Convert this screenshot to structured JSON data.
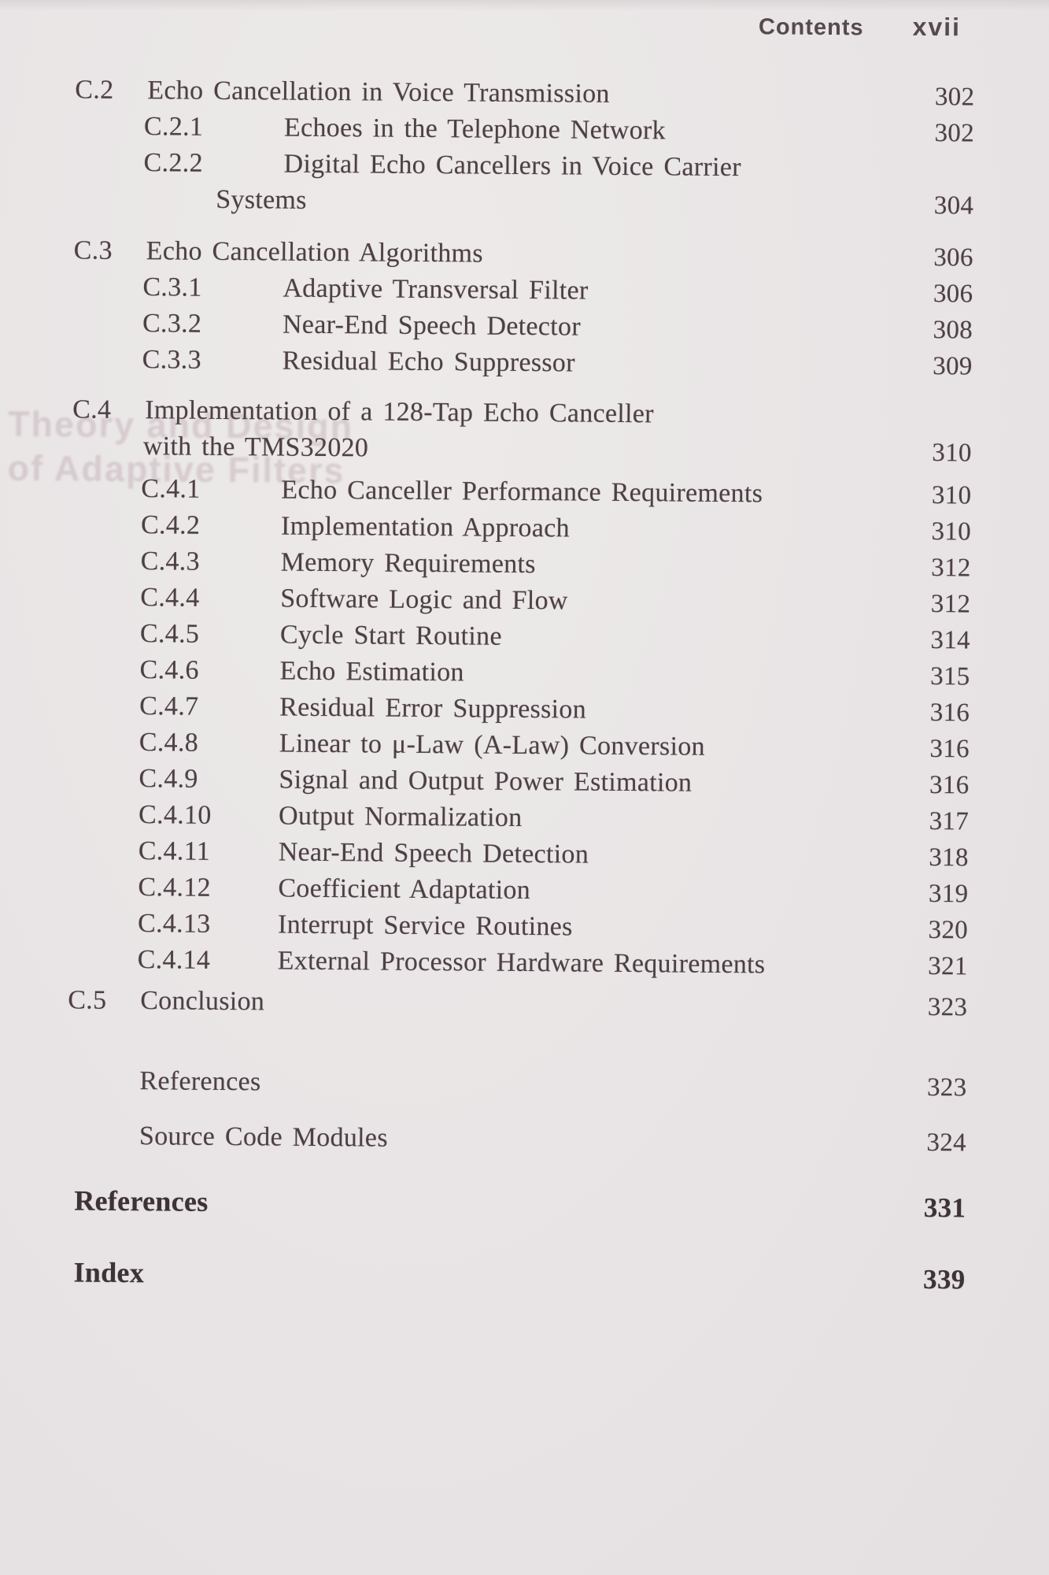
{
  "header": {
    "title": "Contents",
    "page_label": "xvii"
  },
  "ghost_text": {
    "line1": "Theory and Design",
    "line2": "of Adaptive Filters"
  },
  "colors": {
    "paper": "#e9e5e6",
    "ink": "#4d4045",
    "ink_bold": "#3d3237",
    "header_ink": "#564a4e",
    "ghost": "#a98c96"
  },
  "toc_entries": [
    {
      "id": "C.2",
      "level": 0,
      "title": "Echo Cancellation in Voice Transmission",
      "page": "302"
    },
    {
      "id": "C.2.1",
      "level": 1,
      "title": "Echoes in the Telephone Network",
      "page": "302"
    },
    {
      "id": "C.2.2",
      "level": 1,
      "title": "Digital Echo Cancellers in Voice Carrier",
      "continuation": "Systems",
      "page": "304"
    },
    {
      "id": "C.3",
      "level": 0,
      "title": "Echo Cancellation Algorithms",
      "page": "306"
    },
    {
      "id": "C.3.1",
      "level": 1,
      "title": "Adaptive Transversal Filter",
      "page": "306"
    },
    {
      "id": "C.3.2",
      "level": 1,
      "title": "Near-End Speech Detector",
      "page": "308"
    },
    {
      "id": "C.3.3",
      "level": 1,
      "title": "Residual Echo Suppressor",
      "page": "309"
    },
    {
      "id": "C.4",
      "level": 0,
      "title": "Implementation of a 128-Tap Echo Canceller",
      "continuation": "with the TMS32020",
      "page": "310"
    },
    {
      "id": "C.4.1",
      "level": 1,
      "title": "Echo Canceller Performance Requirements",
      "page": "310"
    },
    {
      "id": "C.4.2",
      "level": 1,
      "title": "Implementation Approach",
      "page": "310"
    },
    {
      "id": "C.4.3",
      "level": 1,
      "title": "Memory Requirements",
      "page": "312"
    },
    {
      "id": "C.4.4",
      "level": 1,
      "title": "Software Logic and Flow",
      "page": "312"
    },
    {
      "id": "C.4.5",
      "level": 1,
      "title": "Cycle Start Routine",
      "page": "314"
    },
    {
      "id": "C.4.6",
      "level": 1,
      "title": "Echo Estimation",
      "page": "315"
    },
    {
      "id": "C.4.7",
      "level": 1,
      "title": "Residual Error Suppression",
      "page": "316"
    },
    {
      "id": "C.4.8",
      "level": 1,
      "title": "Linear to μ-Law (A-Law) Conversion",
      "page": "316"
    },
    {
      "id": "C.4.9",
      "level": 1,
      "title": "Signal and Output Power Estimation",
      "page": "316"
    },
    {
      "id": "C.4.10",
      "level": 1,
      "title": "Output Normalization",
      "page": "317"
    },
    {
      "id": "C.4.11",
      "level": 1,
      "title": "Near-End Speech Detection",
      "page": "318"
    },
    {
      "id": "C.4.12",
      "level": 1,
      "title": "Coefficient Adaptation",
      "page": "319"
    },
    {
      "id": "C.4.13",
      "level": 1,
      "title": "Interrupt Service Routines",
      "page": "320"
    },
    {
      "id": "C.4.14",
      "level": 1,
      "title": "External Processor Hardware Requirements",
      "page": "321"
    },
    {
      "id": "C.5",
      "level": 0,
      "title": "Conclusion",
      "page": "323"
    },
    {
      "id": "",
      "kind": "plain",
      "title": "References",
      "page": "323"
    },
    {
      "id": "",
      "kind": "plain",
      "title": "Source Code Modules",
      "page": "324"
    },
    {
      "id": "",
      "kind": "bold",
      "title": "References",
      "page": "331"
    },
    {
      "id": "",
      "kind": "bold",
      "title": "Index",
      "page": "339"
    }
  ]
}
